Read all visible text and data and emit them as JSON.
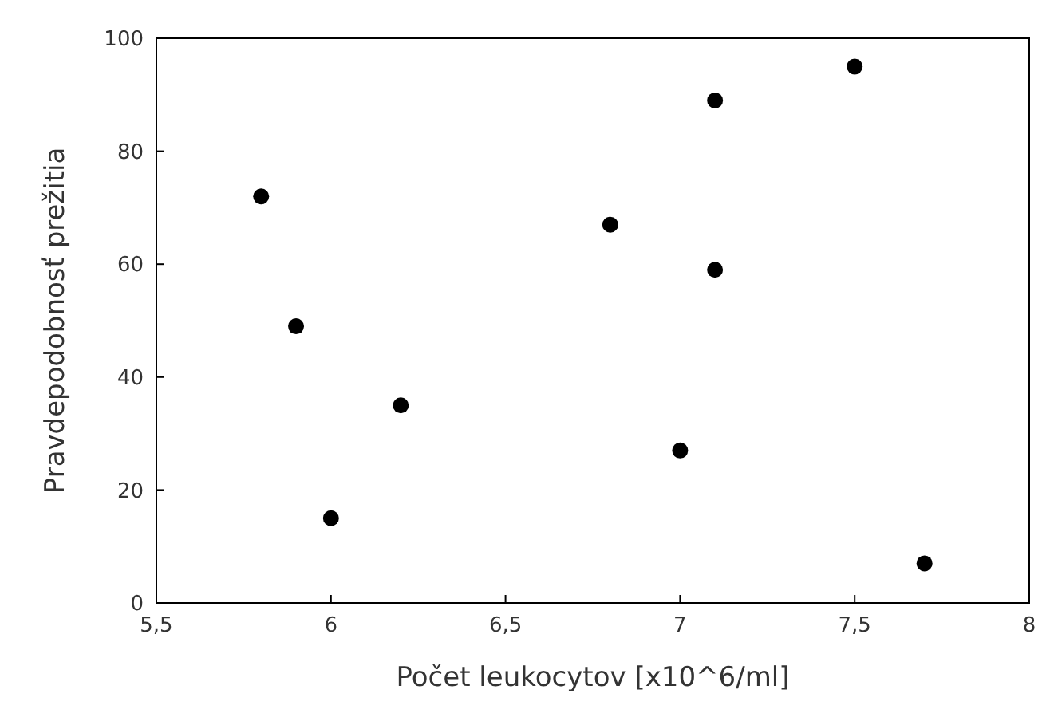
{
  "chart_data": {
    "type": "scatter",
    "xlabel": "Počet leukocytov [x10^6/ml]",
    "ylabel": "Pravdepodobnosť prežitia",
    "x": [
      5.8,
      5.9,
      6.0,
      6.2,
      6.8,
      7.0,
      7.1,
      7.1,
      7.5,
      7.7
    ],
    "series": [
      {
        "color": "#000000",
        "values": [
          72,
          49,
          15,
          35,
          67,
          27,
          89,
          59,
          95,
          7
        ]
      }
    ],
    "xlim": [
      5.5,
      8
    ],
    "ylim": [
      0,
      100
    ],
    "xticks": [
      {
        "value": 5.5,
        "label": "5,5"
      },
      6,
      {
        "value": 6.5,
        "label": "6,5"
      },
      7,
      {
        "value": 7.5,
        "label": "7,5"
      },
      8
    ],
    "yticks": [
      0,
      20,
      40,
      60,
      80,
      100
    ],
    "grid": false,
    "marker": "circle"
  }
}
